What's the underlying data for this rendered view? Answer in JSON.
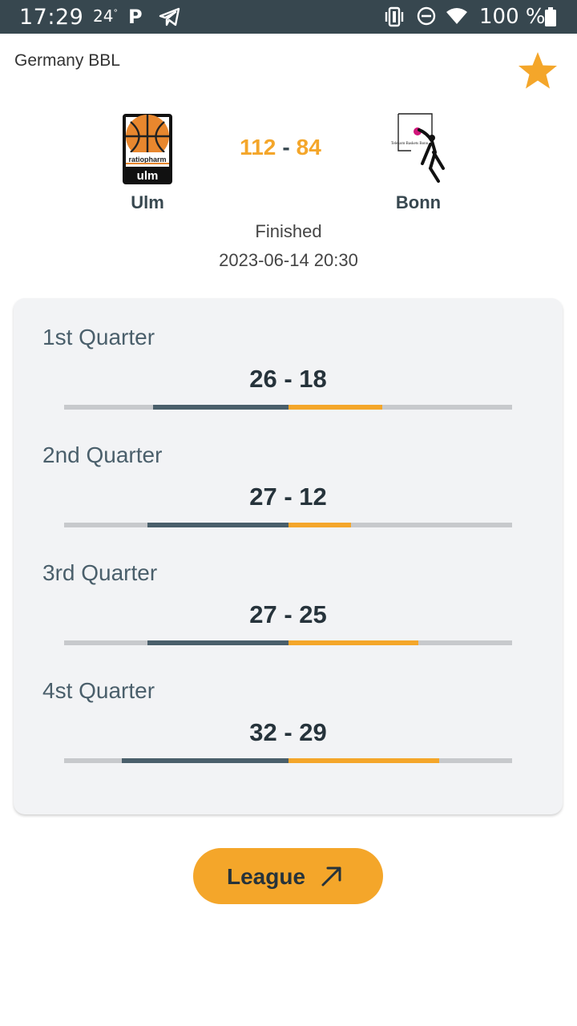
{
  "status_bar": {
    "time": "17:29",
    "temperature": "24",
    "degree": "°",
    "parking": "P",
    "battery": "100 %",
    "icons": [
      "telegram-icon",
      "vibrate-icon",
      "do-not-disturb-icon",
      "wifi-icon",
      "battery-icon"
    ]
  },
  "header": {
    "league": "Germany BBL",
    "favorite_icon": "star-icon"
  },
  "match": {
    "home": {
      "name": "Ulm",
      "logo_text_1": "ratiopharm",
      "logo_text_2": "ulm"
    },
    "away": {
      "name": "Bonn",
      "logo_text": "Telekom Baskets Bonn"
    },
    "home_score": "112",
    "separator": "-",
    "away_score": "84",
    "status": "Finished",
    "datetime": "2023-06-14 20:30"
  },
  "quarters": [
    {
      "label": "1st Quarter",
      "score": "26 - 18",
      "home": 26,
      "away": 18
    },
    {
      "label": "2nd Quarter",
      "score": "27 - 12",
      "home": 27,
      "away": 12
    },
    {
      "label": "3rd Quarter",
      "score": "27 - 25",
      "home": 27,
      "away": 25
    },
    {
      "label": "4st Quarter",
      "score": "32 - 29",
      "home": 32,
      "away": 29
    }
  ],
  "colors": {
    "home_bar": "#4a5f6b",
    "away_bar": "#f4a62a",
    "accent": "#f4a62a",
    "status_bar": "#37474f"
  },
  "league_button": {
    "label": "League",
    "icon": "arrow-up-right-icon"
  }
}
